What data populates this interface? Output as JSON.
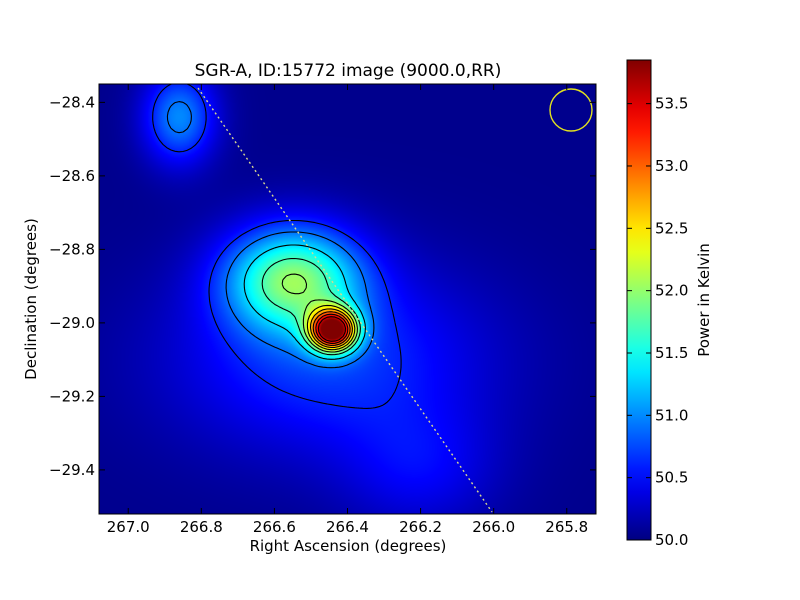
{
  "chart_data": {
    "type": "heatmap",
    "title": "SGR-A, ID:15772 image (9000.0,RR)",
    "xlabel": "Right Ascension (degrees)",
    "ylabel": "Declination (degrees)",
    "xlim": [
      267.08,
      265.72
    ],
    "ylim": [
      -29.52,
      -28.35
    ],
    "x_ticks": [
      267.0,
      266.8,
      266.6,
      266.4,
      266.2,
      266.0,
      265.8
    ],
    "x_tick_labels": [
      "267.0",
      "266.8",
      "266.6",
      "266.4",
      "266.2",
      "266.0",
      "265.8"
    ],
    "y_ticks": [
      -28.4,
      -28.6,
      -28.8,
      -29.0,
      -29.2,
      -29.4
    ],
    "y_tick_labels": [
      "−28.4",
      "−28.6",
      "−28.8",
      "−29.0",
      "−29.2",
      "−29.4"
    ],
    "colorbar": {
      "label": "Power in Kelvin",
      "min": 50.0,
      "max": 53.85,
      "colormap": "jet",
      "ticks": [
        50.0,
        50.5,
        51.0,
        51.5,
        52.0,
        52.5,
        53.0,
        53.5
      ],
      "tick_labels": [
        "50.0",
        "50.5",
        "51.0",
        "51.5",
        "52.0",
        "52.5",
        "53.0",
        "53.5"
      ]
    },
    "field": {
      "background_K": 50.05,
      "sources": [
        {
          "name": "core",
          "ra": 266.44,
          "dec": -29.02,
          "amp_K": 3.4,
          "sigma_ra": 0.045,
          "sigma_dec": 0.04
        },
        {
          "name": "extended-ridge",
          "ra": 266.55,
          "dec": -28.88,
          "amp_K": 1.7,
          "sigma_ra": 0.13,
          "sigma_dec": 0.1
        },
        {
          "name": "northern-blob",
          "ra": 266.86,
          "dec": -28.44,
          "amp_K": 0.95,
          "sigma_ra": 0.07,
          "sigma_dec": 0.09
        },
        {
          "name": "diffuse-band",
          "ra": 266.45,
          "dec": -29.1,
          "amp_K": 0.65,
          "sigma_ra": 0.3,
          "sigma_dec": 0.18
        },
        {
          "name": "southern-tail",
          "ra": 266.2,
          "dec": -29.4,
          "amp_K": 0.35,
          "sigma_ra": 0.15,
          "sigma_dec": 0.12
        }
      ]
    },
    "contour_levels_K": [
      50.6,
      50.9,
      51.3,
      51.7,
      52.0,
      52.3,
      52.6,
      52.9,
      53.2,
      53.5
    ]
  }
}
